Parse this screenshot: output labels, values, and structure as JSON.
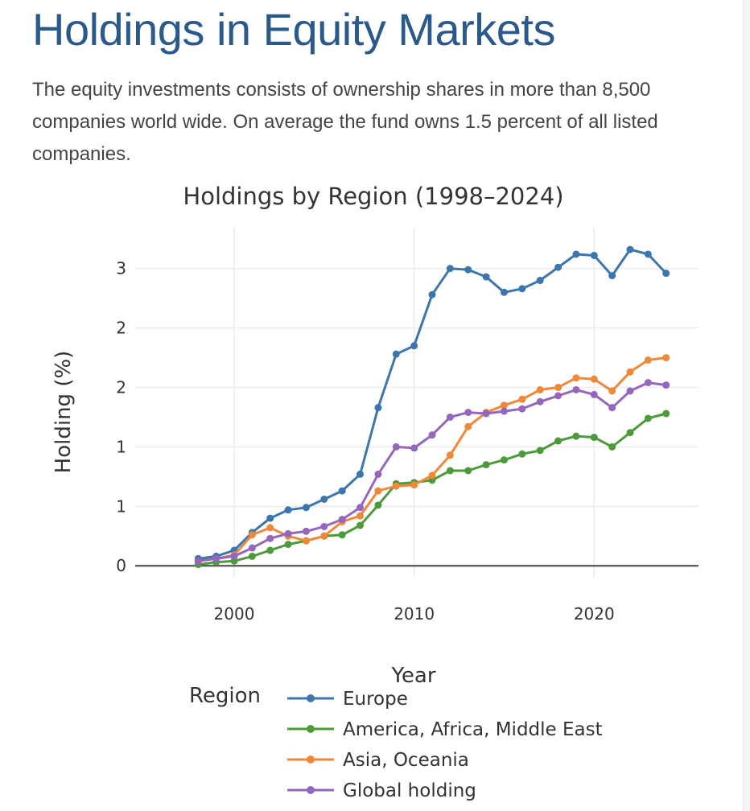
{
  "page": {
    "title": "Holdings in Equity Markets",
    "intro": "The equity investments consists of ownership shares in more than 8,500 companies world wide. On average the fund owns 1.5 percent of all listed companies."
  },
  "colors": {
    "title": "#2a5a8c",
    "grid": "#ececec",
    "axis_line": "#444444"
  },
  "chart_data": {
    "type": "line",
    "title": "Holdings by Region (1998–2024)",
    "xlabel": "Year",
    "ylabel": "Holding (%)",
    "xlim": [
      1994.5,
      2025.8
    ],
    "ylim": [
      -0.1,
      2.85
    ],
    "x_ticks": [
      2000,
      2010,
      2020
    ],
    "x_tick_labels": [
      "2000",
      "2010",
      "2020"
    ],
    "y_ticks": [
      0,
      0.5,
      1,
      1.5,
      2,
      2.5
    ],
    "y_tick_labels": [
      "0",
      "1",
      "1",
      "2",
      "2",
      "3"
    ],
    "grid": true,
    "legend_title": "Region",
    "legend_position": "bottom",
    "x": [
      1998,
      1999,
      2000,
      2001,
      2002,
      2003,
      2004,
      2005,
      2006,
      2007,
      2008,
      2009,
      2010,
      2011,
      2012,
      2013,
      2014,
      2015,
      2016,
      2017,
      2018,
      2019,
      2020,
      2021,
      2022,
      2023,
      2024
    ],
    "series": [
      {
        "name": "Europe",
        "color": "#3d75ad",
        "values": [
          0.06,
          0.08,
          0.13,
          0.28,
          0.4,
          0.47,
          0.49,
          0.56,
          0.63,
          0.77,
          1.33,
          1.78,
          1.85,
          2.28,
          2.5,
          2.49,
          2.43,
          2.3,
          2.33,
          2.4,
          2.51,
          2.62,
          2.61,
          2.44,
          2.66,
          2.62,
          2.46
        ]
      },
      {
        "name": "America, Africa, Middle East",
        "color": "#4c9a3a",
        "values": [
          0.01,
          0.03,
          0.04,
          0.08,
          0.13,
          0.18,
          0.21,
          0.25,
          0.26,
          0.34,
          0.51,
          0.69,
          0.7,
          0.72,
          0.8,
          0.8,
          0.85,
          0.89,
          0.94,
          0.97,
          1.05,
          1.09,
          1.08,
          1.0,
          1.12,
          1.24,
          1.28
        ]
      },
      {
        "name": "Asia, Oceania",
        "color": "#f0883a",
        "values": [
          0.04,
          0.06,
          0.09,
          0.26,
          0.32,
          0.25,
          0.21,
          0.25,
          0.37,
          0.42,
          0.63,
          0.67,
          0.68,
          0.76,
          0.93,
          1.17,
          1.29,
          1.35,
          1.4,
          1.48,
          1.5,
          1.58,
          1.57,
          1.47,
          1.63,
          1.73,
          1.75
        ]
      },
      {
        "name": "Global holding",
        "color": "#9467bd",
        "values": [
          0.04,
          0.06,
          0.08,
          0.15,
          0.23,
          0.27,
          0.29,
          0.33,
          0.39,
          0.49,
          0.77,
          1.0,
          0.99,
          1.1,
          1.25,
          1.29,
          1.28,
          1.3,
          1.32,
          1.38,
          1.43,
          1.48,
          1.44,
          1.33,
          1.47,
          1.54,
          1.52
        ]
      }
    ]
  }
}
